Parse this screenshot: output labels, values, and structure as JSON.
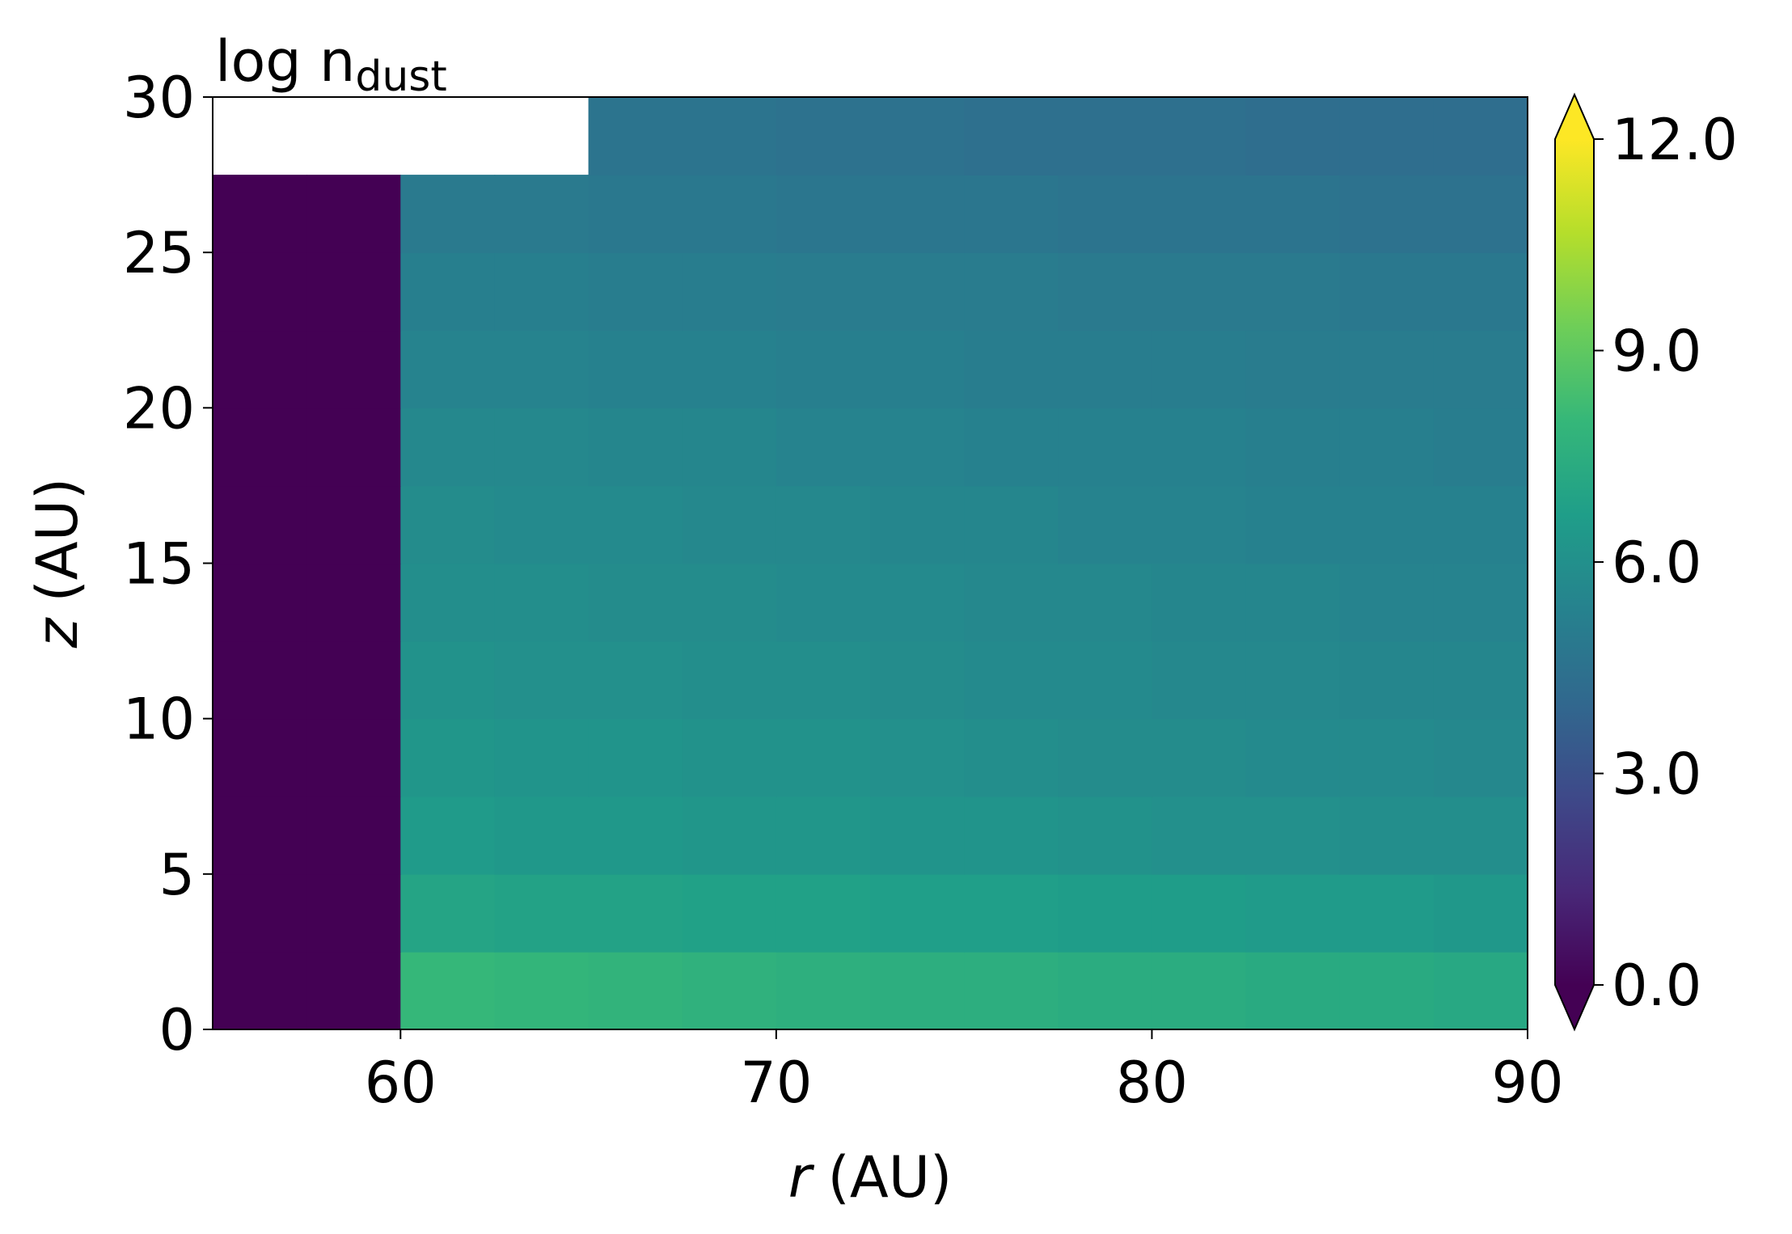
{
  "chart_data": {
    "type": "heatmap",
    "title": "log n",
    "title_subscript": "dust",
    "xlabel": {
      "symbol": "r",
      "unit": "(AU)"
    },
    "ylabel": {
      "symbol": "z",
      "unit": "(AU)"
    },
    "x_edges": [
      55,
      57.5,
      60,
      62.5,
      65,
      67.5,
      70,
      72.5,
      75,
      77.5,
      80,
      82.5,
      85,
      87.5,
      90
    ],
    "y_edges": [
      0,
      2.5,
      5,
      7.5,
      10,
      12.5,
      15,
      17.5,
      20,
      22.5,
      25,
      27.5,
      30
    ],
    "values": [
      [
        0,
        0,
        8.0,
        7.9,
        7.8,
        7.7,
        7.6,
        7.5,
        7.5,
        7.4,
        7.4,
        7.3,
        7.3,
        7.2
      ],
      [
        0,
        0,
        7.0,
        6.9,
        6.9,
        6.8,
        6.8,
        6.7,
        6.7,
        6.6,
        6.6,
        6.5,
        6.5,
        6.4
      ],
      [
        0,
        0,
        6.5,
        6.4,
        6.4,
        6.3,
        6.3,
        6.2,
        6.2,
        6.1,
        6.0,
        6.0,
        5.9,
        5.9
      ],
      [
        0,
        0,
        6.3,
        6.2,
        6.2,
        6.1,
        6.1,
        6.0,
        5.9,
        5.8,
        5.8,
        5.7,
        5.7,
        5.6
      ],
      [
        0,
        0,
        6.1,
        6.0,
        6.0,
        5.9,
        5.9,
        5.8,
        5.7,
        5.7,
        5.6,
        5.6,
        5.5,
        5.5
      ],
      [
        0,
        0,
        5.9,
        5.9,
        5.8,
        5.8,
        5.7,
        5.7,
        5.6,
        5.6,
        5.5,
        5.5,
        5.4,
        5.4
      ],
      [
        0,
        0,
        5.8,
        5.7,
        5.7,
        5.6,
        5.6,
        5.5,
        5.5,
        5.4,
        5.4,
        5.3,
        5.3,
        5.3
      ],
      [
        0,
        0,
        5.6,
        5.6,
        5.5,
        5.5,
        5.4,
        5.4,
        5.3,
        5.3,
        5.3,
        5.2,
        5.2,
        5.1
      ],
      [
        0,
        0,
        5.4,
        5.4,
        5.3,
        5.3,
        5.2,
        5.2,
        5.1,
        5.1,
        5.1,
        5.0,
        5.0,
        5.0
      ],
      [
        0,
        0,
        5.2,
        5.2,
        5.1,
        5.1,
        5.0,
        5.0,
        5.0,
        4.9,
        4.9,
        4.9,
        4.8,
        4.8
      ],
      [
        0,
        0,
        4.9,
        4.9,
        4.8,
        4.8,
        4.7,
        4.7,
        4.7,
        4.6,
        4.6,
        4.6,
        4.5,
        4.5
      ],
      [
        null,
        null,
        null,
        null,
        4.6,
        4.6,
        4.5,
        4.5,
        4.4,
        4.4,
        4.4,
        4.3,
        4.3,
        4.3
      ]
    ],
    "xlim": [
      55,
      90
    ],
    "xticks": [
      60,
      70,
      80,
      90
    ],
    "ylim": [
      0,
      30
    ],
    "yticks": [
      0,
      5,
      10,
      15,
      20,
      25,
      30
    ],
    "colormap": "viridis",
    "clim": [
      0,
      12
    ],
    "colorbar_extend": "both",
    "colorbar_ticks": [
      {
        "value": 0,
        "label": "0.0"
      },
      {
        "value": 3,
        "label": "3.0"
      },
      {
        "value": 6,
        "label": "6.0"
      },
      {
        "value": 9,
        "label": "9.0"
      },
      {
        "value": 12,
        "label": "12.0"
      }
    ]
  }
}
